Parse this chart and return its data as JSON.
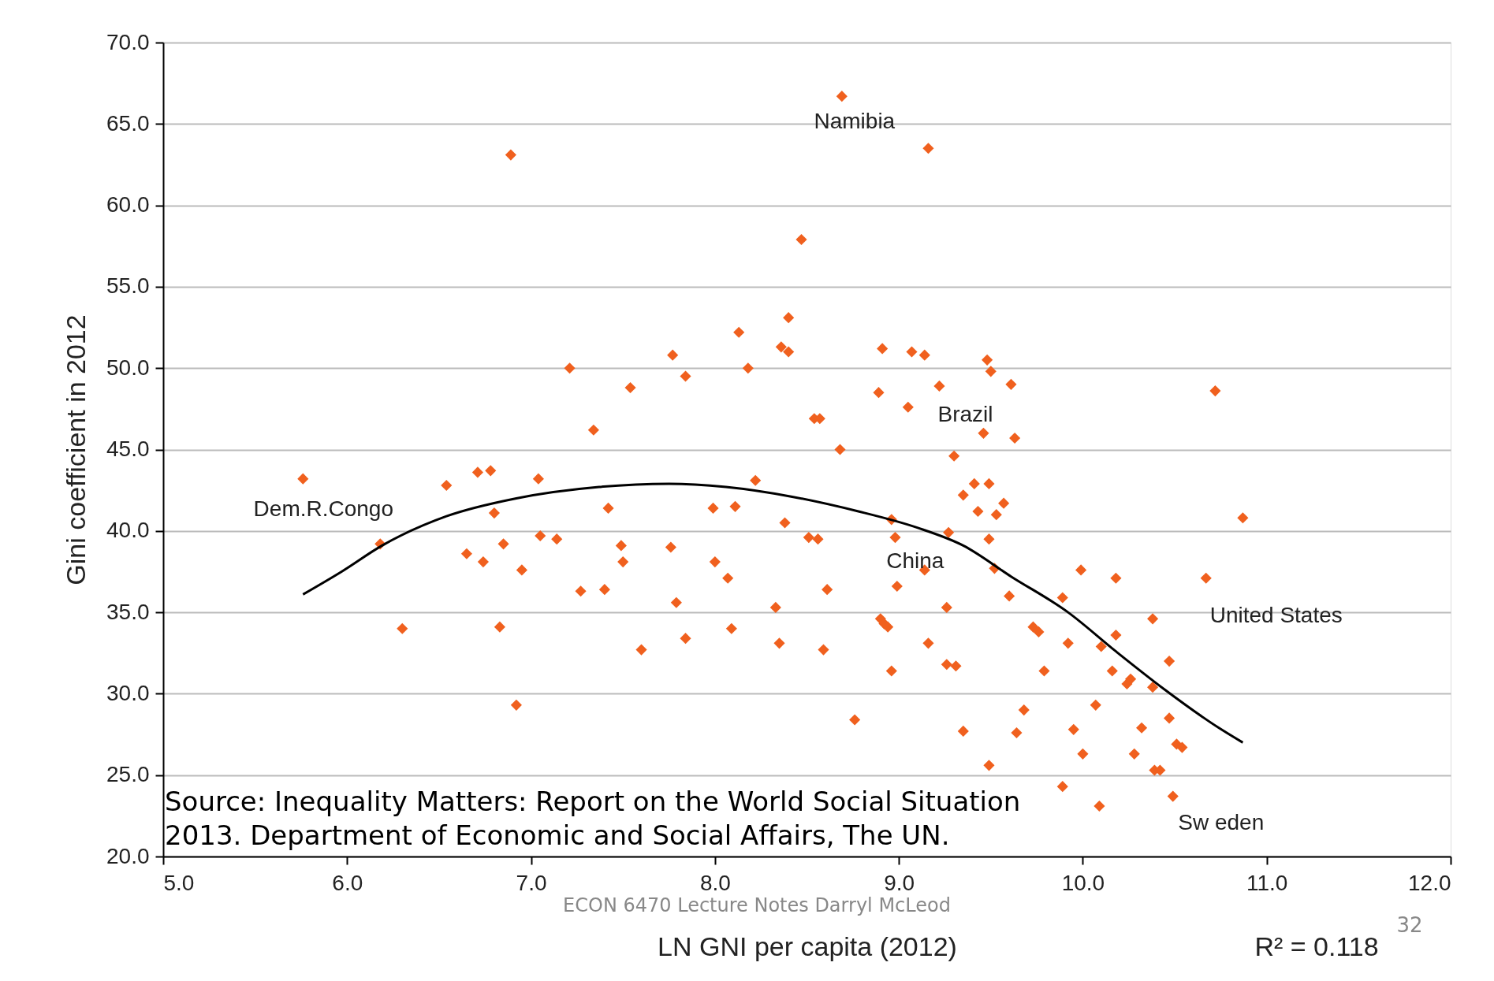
{
  "chart_data": {
    "type": "scatter",
    "xlabel": "LN GNI per capita (2012)",
    "ylabel": "Gini coefficient in 2012",
    "xlim": [
      5,
      12
    ],
    "ylim": [
      20,
      70
    ],
    "xticks": [
      {
        "value": 5,
        "label": "5.0"
      },
      {
        "value": 6,
        "label": "6.0"
      },
      {
        "value": 7,
        "label": "7.0"
      },
      {
        "value": 8,
        "label": "8.0"
      },
      {
        "value": 9,
        "label": "9.0"
      },
      {
        "value": 10,
        "label": "10.0"
      },
      {
        "value": 11,
        "label": "11.0"
      },
      {
        "value": 12,
        "label": "12.0"
      }
    ],
    "yticks": [
      {
        "value": 20,
        "label": "20.0"
      },
      {
        "value": 25,
        "label": "25.0"
      },
      {
        "value": 30,
        "label": "30.0"
      },
      {
        "value": 35,
        "label": "35.0"
      },
      {
        "value": 40,
        "label": "40.0"
      },
      {
        "value": 45,
        "label": "45.0"
      },
      {
        "value": 50,
        "label": "50.0"
      },
      {
        "value": 55,
        "label": "55.0"
      },
      {
        "value": 60,
        "label": "60.0"
      },
      {
        "value": 65,
        "label": "65.0"
      },
      {
        "value": 70,
        "label": "70.0"
      }
    ],
    "grid": "y",
    "marker": "diamond",
    "legend": false,
    "series": [
      {
        "color": "#f0601e",
        "x": [
          5.76,
          6.18,
          6.3,
          6.54,
          6.65,
          6.71,
          6.74,
          6.78,
          6.8,
          6.85,
          6.83,
          6.89,
          6.92,
          6.95,
          7.04,
          7.05,
          7.14,
          7.21,
          7.27,
          7.34,
          7.4,
          7.42,
          7.49,
          7.5,
          7.54,
          7.6,
          7.77,
          7.76,
          7.79,
          7.84,
          7.84,
          7.99,
          8.0,
          8.07,
          8.09,
          8.11,
          8.13,
          8.18,
          8.22,
          8.33,
          8.35,
          8.36,
          8.4,
          8.4,
          8.38,
          8.47,
          8.51,
          8.54,
          8.57,
          8.56,
          8.59,
          8.61,
          8.68,
          8.69,
          8.76,
          8.89,
          8.91,
          8.9,
          8.92,
          8.94,
          8.96,
          8.98,
          8.96,
          8.99,
          9.05,
          9.07,
          9.14,
          9.14,
          9.16,
          9.16,
          9.22,
          9.26,
          9.26,
          9.27,
          9.3,
          9.31,
          9.35,
          9.35,
          9.41,
          9.43,
          9.46,
          9.48,
          9.49,
          9.5,
          9.49,
          9.49,
          9.52,
          9.53,
          9.57,
          9.6,
          9.61,
          9.63,
          9.64,
          9.68,
          9.73,
          9.76,
          9.79,
          9.89,
          9.89,
          9.92,
          9.95,
          9.99,
          10.0,
          10.07,
          10.09,
          10.1,
          10.16,
          10.18,
          10.18,
          10.24,
          10.26,
          10.28,
          10.32,
          10.38,
          10.38,
          10.39,
          10.42,
          10.47,
          10.47,
          10.49,
          10.51,
          10.54,
          10.67,
          10.72,
          10.87
        ],
        "values": [
          43.2,
          39.2,
          34.0,
          42.8,
          38.6,
          43.6,
          38.1,
          43.7,
          41.1,
          39.2,
          34.1,
          63.1,
          29.3,
          37.6,
          43.2,
          39.7,
          39.5,
          50.0,
          36.3,
          46.2,
          36.4,
          41.4,
          39.1,
          38.1,
          48.8,
          32.7,
          50.8,
          39.0,
          35.6,
          49.5,
          33.4,
          41.4,
          38.1,
          37.1,
          34.0,
          41.5,
          52.2,
          50.0,
          43.1,
          35.3,
          33.1,
          51.3,
          51.0,
          53.1,
          40.5,
          57.9,
          39.6,
          46.9,
          46.9,
          39.5,
          32.7,
          36.4,
          45.0,
          66.7,
          28.4,
          48.5,
          51.2,
          34.6,
          34.3,
          34.1,
          40.7,
          39.6,
          31.4,
          36.6,
          47.6,
          51.0,
          50.8,
          37.6,
          33.1,
          63.5,
          48.9,
          35.3,
          31.8,
          39.9,
          44.6,
          31.7,
          42.2,
          27.7,
          42.9,
          41.2,
          46.0,
          50.5,
          42.9,
          49.8,
          39.5,
          25.6,
          37.7,
          41.0,
          41.7,
          36.0,
          49.0,
          45.7,
          27.6,
          29.0,
          34.1,
          33.8,
          31.4,
          35.9,
          24.3,
          33.1,
          27.8,
          37.6,
          26.3,
          29.3,
          23.1,
          32.9,
          31.4,
          37.1,
          33.6,
          30.6,
          30.9,
          26.3,
          27.9,
          34.6,
          30.4,
          25.3,
          25.3,
          32.0,
          28.5,
          23.7,
          26.9,
          26.7,
          37.1,
          48.6,
          40.8
        ]
      },
      {
        "type": "line",
        "color": "#000000",
        "marker": "none",
        "x": [
          5.76,
          5.97,
          6.19,
          6.54,
          6.92,
          7.37,
          7.75,
          8.06,
          8.42,
          8.78,
          9.1,
          9.35,
          9.61,
          9.92,
          10.18,
          10.44,
          10.74,
          10.87
        ],
        "values": [
          36.1,
          37.5,
          39.1,
          40.9,
          42.0,
          42.7,
          42.9,
          42.7,
          42.1,
          41.2,
          40.2,
          39.1,
          37.2,
          35.0,
          32.6,
          30.3,
          27.9,
          27.0
        ]
      }
    ],
    "annotations": [
      {
        "text": "Namibia",
        "x": 8.69,
        "y": 66.7
      },
      {
        "text": "Dem.R.Congo",
        "x": 5.76,
        "y": 43.2
      },
      {
        "text": "Brazil",
        "x": 9.46,
        "y": 46.0
      },
      {
        "text": "China",
        "x": 9.14,
        "y": 37.6
      },
      {
        "text": "United States",
        "x": 10.67,
        "y": 37.1
      },
      {
        "text": "Sw eden",
        "x": 10.49,
        "y": 23.7
      },
      "Source: Inequality Matters: Report on the World Social Situation\n2013. Department of Economic and Social Affairs, The UN.",
      "R² = 0.118",
      "ECON 6470 Lecture Notes  Darryl McLeod",
      "32"
    ]
  }
}
